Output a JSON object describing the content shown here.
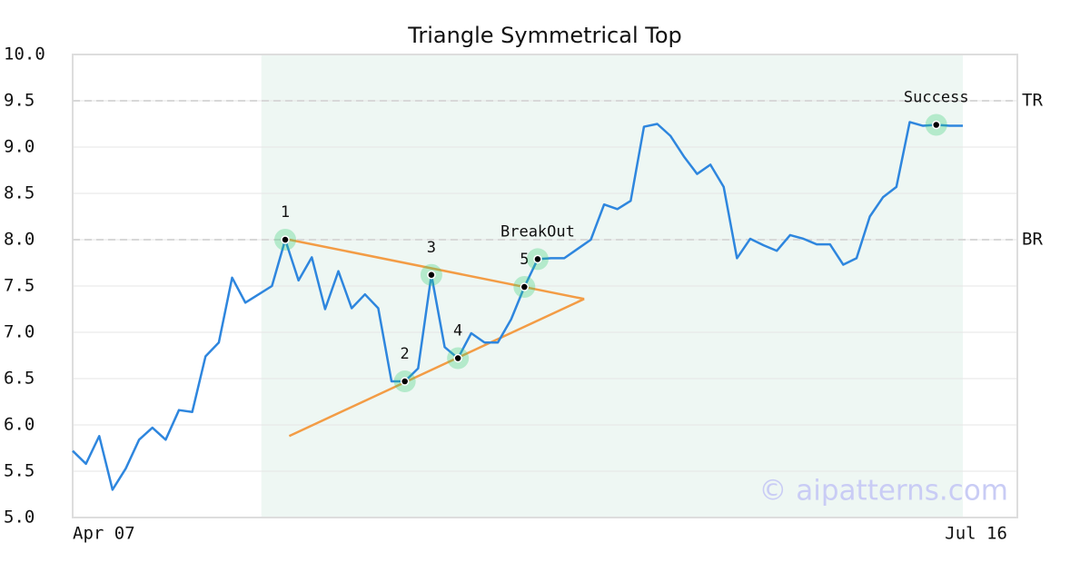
{
  "chart_data": {
    "type": "line",
    "title": "Triangle Symmetrical Top",
    "categories": [
      "Apr 07",
      null,
      null,
      null,
      null,
      null,
      null,
      null,
      null,
      null,
      null,
      null,
      null,
      null,
      null,
      null,
      null,
      null,
      null,
      null,
      null,
      null,
      null,
      null,
      null,
      null,
      null,
      null,
      null,
      null,
      null,
      null,
      null,
      null,
      null,
      null,
      null,
      null,
      null,
      null,
      null,
      null,
      null,
      null,
      null,
      null,
      null,
      null,
      null,
      null,
      null,
      null,
      null,
      null,
      null,
      null,
      null,
      null,
      null,
      null,
      null,
      null,
      null,
      null,
      null,
      null,
      null,
      null,
      "Jul 16"
    ],
    "series": [
      {
        "color": "#2e86de",
        "values": [
          5.72,
          5.58,
          5.88,
          5.3,
          5.53,
          5.84,
          5.97,
          5.84,
          6.16,
          6.14,
          6.74,
          6.89,
          7.59,
          7.32,
          7.41,
          7.5,
          8.0,
          7.56,
          7.81,
          7.25,
          7.66,
          7.26,
          7.41,
          7.26,
          6.47,
          6.47,
          6.61,
          7.62,
          6.84,
          6.72,
          6.99,
          6.89,
          6.89,
          7.14,
          7.49,
          7.79,
          7.8,
          7.8,
          7.9,
          8.0,
          8.38,
          8.33,
          8.42,
          9.22,
          9.25,
          9.12,
          8.9,
          8.71,
          8.81,
          8.57,
          7.8,
          8.01,
          7.94,
          7.88,
          8.05,
          8.01,
          7.95,
          7.95,
          7.73,
          7.8,
          8.25,
          8.46,
          8.57,
          9.27,
          9.23,
          9.24,
          9.23,
          9.23,
          null
        ]
      }
    ],
    "ylim": [
      5.0,
      10.0
    ],
    "yticks": [
      {
        "value": 5,
        "label": "5.0"
      },
      5.5,
      {
        "value": 6,
        "label": "6.0"
      },
      6.5,
      {
        "value": 7,
        "label": "7.0"
      },
      7.5,
      {
        "value": 8,
        "label": "8.0"
      },
      8.5,
      {
        "value": 9,
        "label": "9.0"
      },
      9.5,
      {
        "value": 10,
        "label": "10.0"
      }
    ],
    "grid": true,
    "highlight_range": [
      14.2,
      67
    ],
    "reference_lines": [
      {
        "label": "TR",
        "value": 9.5
      },
      {
        "label": "BR",
        "value": 8.0
      }
    ],
    "trendlines": [
      {
        "color": "#f39c45",
        "x": [
          16.3,
          38.5
        ],
        "y": [
          8.0,
          7.36
        ]
      },
      {
        "color": "#f39c45",
        "x": [
          16.3,
          38.5
        ],
        "y": [
          5.88,
          7.36
        ]
      }
    ],
    "markers": [
      {
        "label": "1",
        "index": 16,
        "value": 8.0
      },
      {
        "label": "2",
        "index": 25,
        "value": 6.47
      },
      {
        "label": "3",
        "index": 27,
        "value": 7.62
      },
      {
        "label": "4",
        "index": 29,
        "value": 6.72
      },
      {
        "label": "5",
        "index": 34,
        "value": 7.49
      },
      {
        "label": "BreakOut",
        "index": 35,
        "value": 7.79
      },
      {
        "label": "Success",
        "index": 65,
        "value": 9.24
      }
    ],
    "watermark": "© aipatterns.com"
  }
}
